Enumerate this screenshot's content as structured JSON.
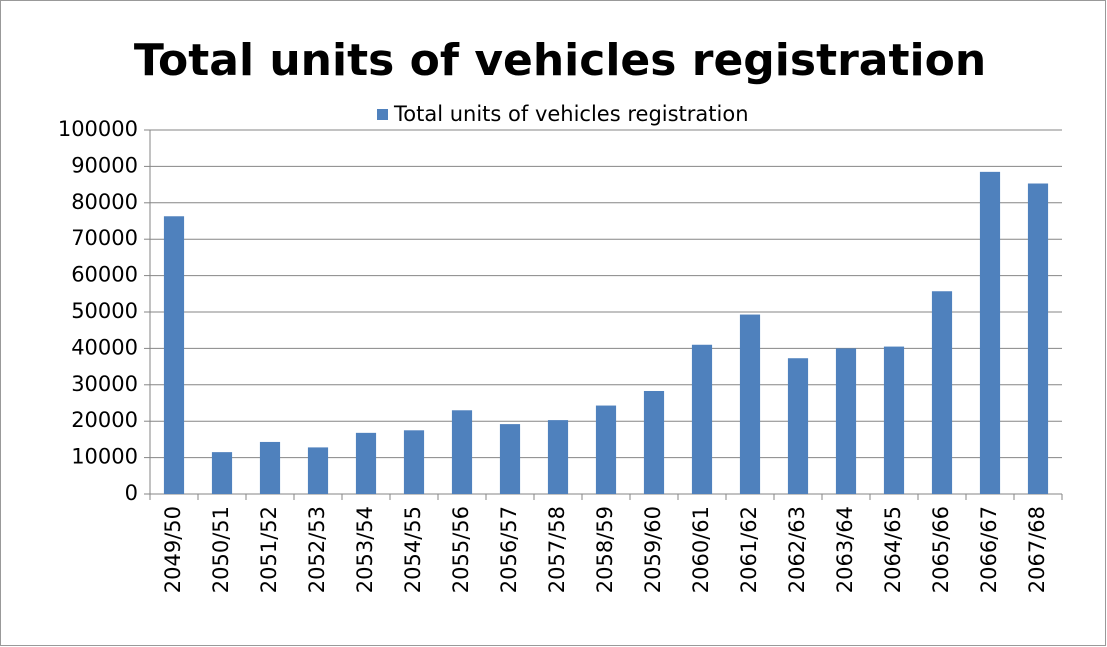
{
  "chart_data": {
    "type": "bar",
    "title": "Total units of vehicles registration",
    "categories": [
      "2049/50",
      "2050/51",
      "2051/52",
      "2052/53",
      "2053/54",
      "2054/55",
      "2055/56",
      "2056/57",
      "2057/58",
      "2058/59",
      "2059/60",
      "2060/61",
      "2061/62",
      "2062/63",
      "2063/64",
      "2064/65",
      "2065/66",
      "2066/67",
      "2067/68"
    ],
    "series": [
      {
        "name": "Total units of vehicles registration",
        "color": "#4f81bd",
        "values": [
          76300,
          11500,
          14300,
          12800,
          16800,
          17500,
          23000,
          19200,
          20300,
          24300,
          28300,
          41000,
          49300,
          37300,
          40000,
          40500,
          55700,
          88500,
          85300
        ]
      }
    ],
    "ylim": [
      0,
      100000
    ],
    "yticks": [
      0,
      10000,
      20000,
      30000,
      40000,
      50000,
      60000,
      70000,
      80000,
      90000,
      100000
    ],
    "grid": true,
    "legend": "top"
  }
}
